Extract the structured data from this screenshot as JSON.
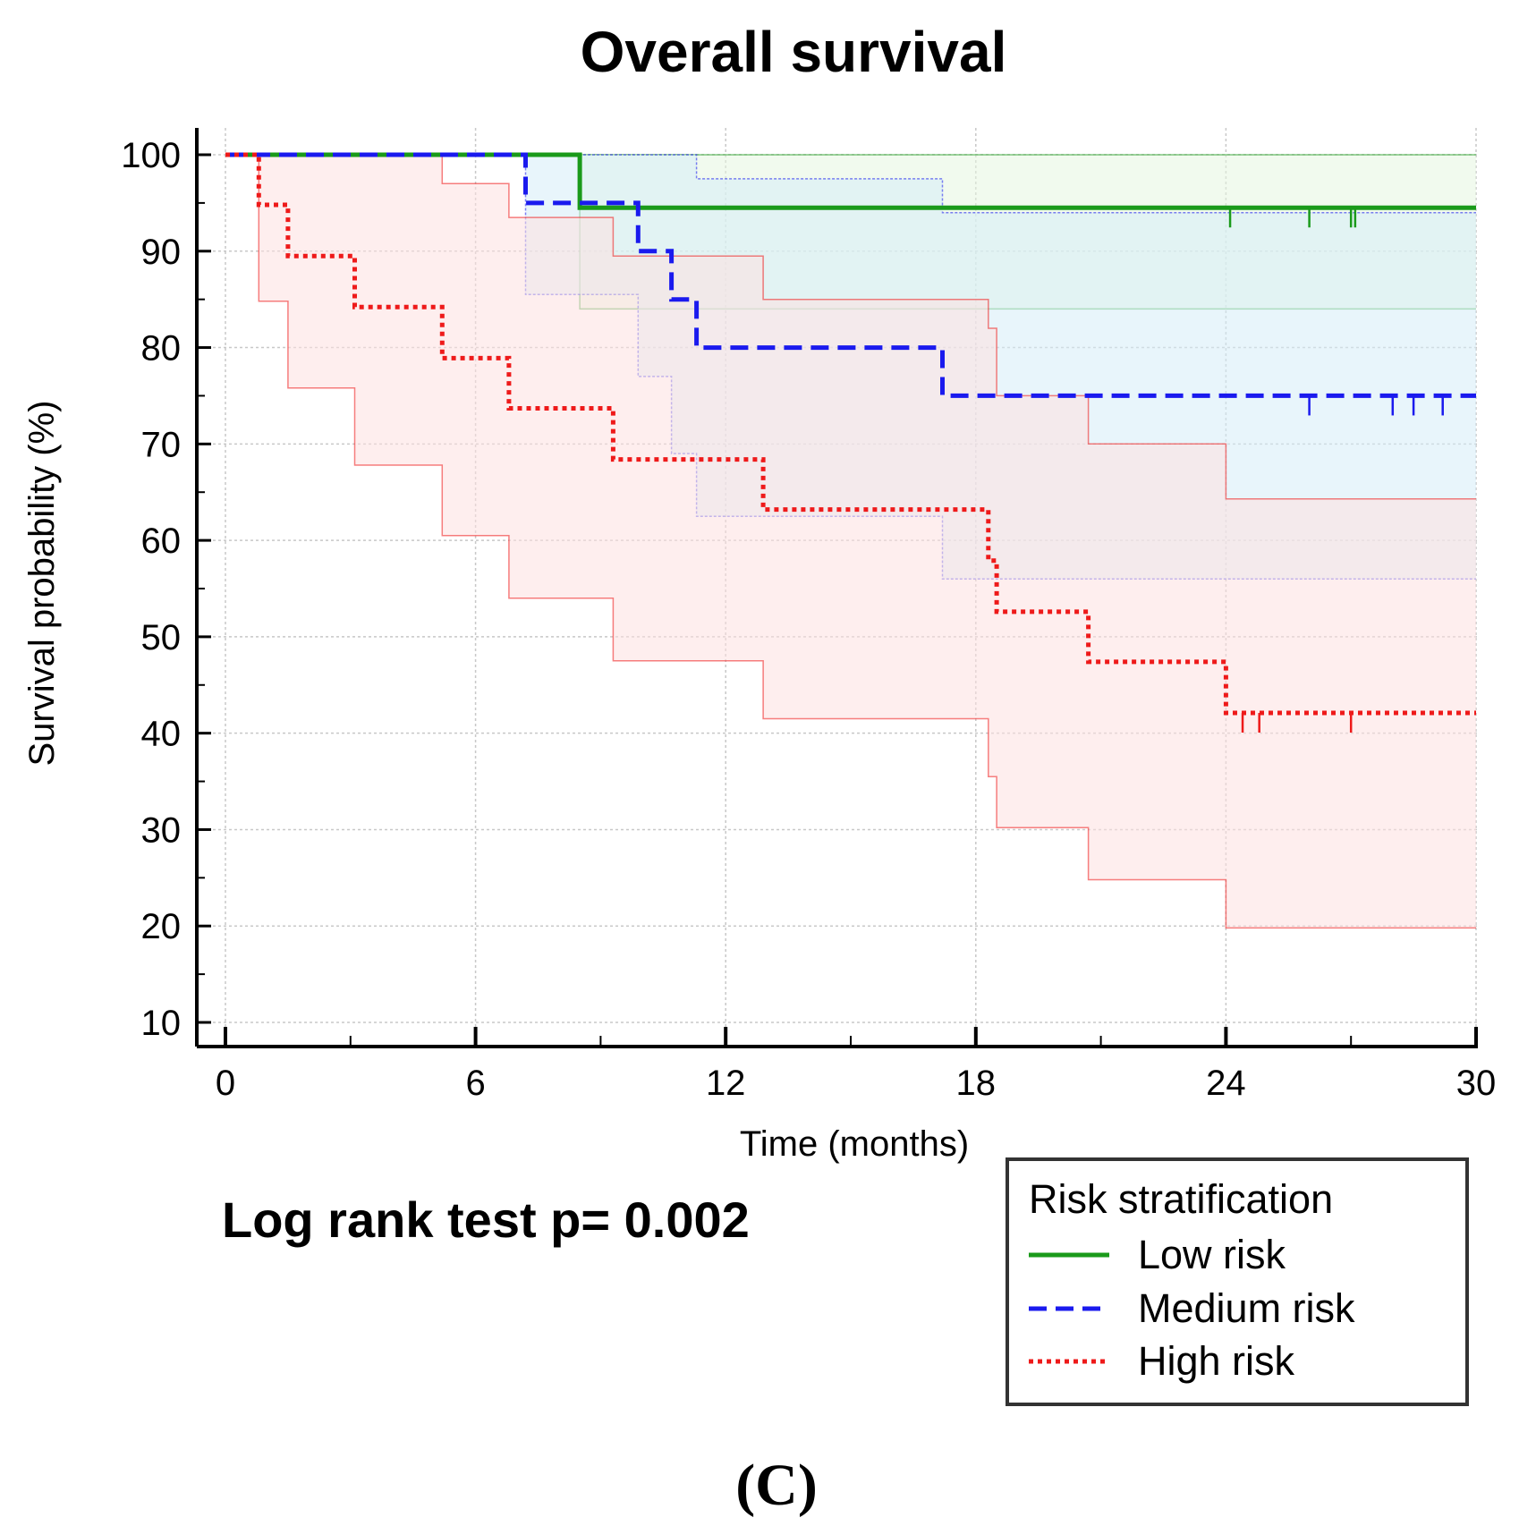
{
  "chart_data": {
    "type": "line",
    "subtype": "kaplan-meier",
    "title": "Overall survival",
    "xlabel": "Time (months)",
    "ylabel": "Survival probability (%)",
    "xlim": [
      0,
      30
    ],
    "ylim": [
      10,
      100
    ],
    "xticks": [
      0,
      6,
      12,
      18,
      24,
      30
    ],
    "yticks": [
      10,
      20,
      30,
      40,
      50,
      60,
      70,
      80,
      90,
      100
    ],
    "grid": true,
    "annotation": "Log rank test p= 0.002",
    "panel_label": "(C)",
    "legend": {
      "title": "Risk stratification",
      "position": "bottom-right",
      "entries": [
        {
          "label": "Low risk",
          "color": "#1a9a1a",
          "style": "solid"
        },
        {
          "label": "Medium risk",
          "color": "#1a1aee",
          "style": "dashed"
        },
        {
          "label": "High risk",
          "color": "#ee1a1a",
          "style": "dotted"
        }
      ]
    },
    "series": [
      {
        "name": "Low risk",
        "color": "#1a9a1a",
        "fill": "#e6f5e0",
        "style": "solid",
        "steps": [
          [
            0,
            100
          ],
          [
            8.5,
            94.5
          ],
          [
            30,
            94.5
          ]
        ],
        "upper": [
          [
            0,
            100
          ],
          [
            30,
            100
          ]
        ],
        "lower": [
          [
            0,
            100
          ],
          [
            8.5,
            84
          ],
          [
            30,
            84
          ]
        ],
        "censored": [
          24.1,
          26,
          27,
          27.1
        ]
      },
      {
        "name": "Medium risk",
        "color": "#1a1aee",
        "fill": "#d6ecf8",
        "style": "dashed",
        "steps": [
          [
            0,
            100
          ],
          [
            7.2,
            95
          ],
          [
            9.9,
            90
          ],
          [
            10.7,
            85
          ],
          [
            11.3,
            80
          ],
          [
            17.2,
            75
          ],
          [
            30,
            75
          ]
        ],
        "upper": [
          [
            0,
            100
          ],
          [
            11.3,
            97.5
          ],
          [
            17.2,
            94
          ],
          [
            30,
            94
          ]
        ],
        "lower": [
          [
            0,
            100
          ],
          [
            7.2,
            85.5
          ],
          [
            9.9,
            77
          ],
          [
            10.7,
            69
          ],
          [
            11.3,
            62.5
          ],
          [
            17.2,
            56
          ],
          [
            30,
            56
          ]
        ],
        "censored": [
          26,
          28,
          28.5,
          29.2
        ]
      },
      {
        "name": "High risk",
        "color": "#ee1a1a",
        "fill": "#fde0e0",
        "style": "dotted",
        "steps": [
          [
            0,
            100
          ],
          [
            0.8,
            94.8
          ],
          [
            1.5,
            89.5
          ],
          [
            3.1,
            84.2
          ],
          [
            5.2,
            78.9
          ],
          [
            6.8,
            73.7
          ],
          [
            9.3,
            68.4
          ],
          [
            12.9,
            63.2
          ],
          [
            18.3,
            57.9
          ],
          [
            18.5,
            52.6
          ],
          [
            20.7,
            47.4
          ],
          [
            24,
            42.1
          ],
          [
            30,
            42.1
          ]
        ],
        "upper": [
          [
            0,
            100
          ],
          [
            5.2,
            97
          ],
          [
            6.8,
            93.5
          ],
          [
            9.3,
            89.5
          ],
          [
            12.9,
            85
          ],
          [
            18.3,
            82
          ],
          [
            18.5,
            75
          ],
          [
            20.7,
            70
          ],
          [
            24,
            64.3
          ],
          [
            30,
            64.3
          ]
        ],
        "lower": [
          [
            0,
            100
          ],
          [
            0.8,
            84.8
          ],
          [
            1.5,
            75.8
          ],
          [
            3.1,
            67.8
          ],
          [
            5.2,
            60.5
          ],
          [
            6.8,
            54
          ],
          [
            9.3,
            47.5
          ],
          [
            12.9,
            41.5
          ],
          [
            18.3,
            35.5
          ],
          [
            18.5,
            30.2
          ],
          [
            20.7,
            24.8
          ],
          [
            24,
            19.8
          ],
          [
            30,
            19.8
          ]
        ],
        "censored": [
          24.4,
          24.8,
          27
        ]
      }
    ]
  }
}
